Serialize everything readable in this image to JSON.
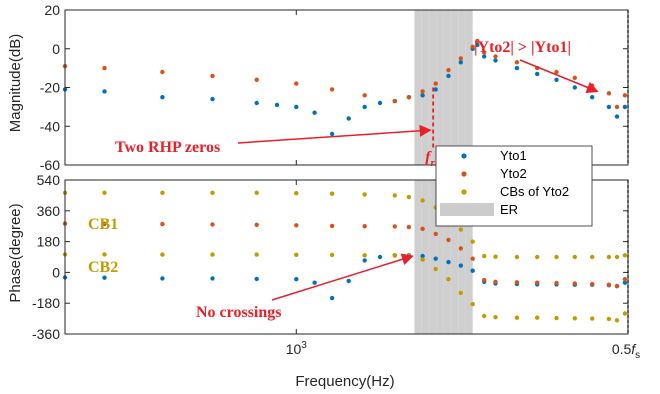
{
  "chart_data": [
    {
      "type": "scatter",
      "panel": "magnitude",
      "ylabel": "Magnitude(dB)",
      "xlabel": "",
      "xscale": "log",
      "xlim": [
        540,
        2420
      ],
      "ylim": [
        -60,
        20
      ],
      "yticks": [
        "20",
        "0",
        "-20",
        "-40",
        "-60"
      ],
      "xticks": [],
      "grid": false,
      "region": {
        "name": "ER",
        "x": [
          1370,
          1600
        ],
        "color": "#bfbfbf"
      },
      "series": [
        {
          "name": "Yto1",
          "color": "#0072BD",
          "x": [
            540,
            600,
            700,
            800,
            900,
            950,
            1000,
            1050,
            1100,
            1150,
            1200,
            1250,
            1300,
            1350,
            1400,
            1450,
            1500,
            1550,
            1600,
            1620,
            1650,
            1700,
            1800,
            1900,
            2000,
            2100,
            2200,
            2300,
            2350,
            2400
          ],
          "y": [
            -21,
            -22,
            -25,
            -26,
            -28,
            -29,
            -30,
            -33,
            -44,
            -36,
            -30,
            -28,
            -27,
            -25,
            -24,
            -21,
            -14,
            -7,
            0,
            2,
            -4,
            -6,
            -10,
            -13,
            -16,
            -20,
            -25,
            -30,
            -35,
            -30
          ]
        },
        {
          "name": "Yto2",
          "color": "#D95319",
          "x": [
            540,
            600,
            700,
            800,
            900,
            1000,
            1100,
            1200,
            1300,
            1350,
            1400,
            1450,
            1500,
            1550,
            1600,
            1620,
            1650,
            1700,
            1800,
            1900,
            2000,
            2100,
            2200,
            2300,
            2350,
            2400
          ],
          "y": [
            -9,
            -10,
            -12,
            -14,
            -16,
            -18,
            -21,
            -24,
            -27,
            -25,
            -22,
            -18,
            -11,
            -5,
            1,
            4,
            -2,
            -4,
            -7,
            -10,
            -12,
            -15,
            -19,
            -23,
            -30,
            -24
          ]
        }
      ],
      "markers": [
        {
          "label": "f",
          "subscript": "r",
          "x": 1440,
          "color": "#e8202a"
        }
      ],
      "annotations": [
        {
          "text": "Two RHP zeros",
          "color": "#e8202a",
          "arrow_to": [
            1440,
            -42
          ]
        },
        {
          "text": "|Yto2| > |Yto1|",
          "color": "#e8202a",
          "arrow_to": [
            2230,
            -22
          ]
        }
      ]
    },
    {
      "type": "scatter",
      "panel": "phase",
      "ylabel": "Phase(degree)",
      "xlabel": "Frequency(Hz)",
      "xscale": "log",
      "xlim": [
        540,
        2420
      ],
      "ylim": [
        -360,
        540
      ],
      "yticks": [
        "540",
        "360",
        "180",
        "0",
        "-180",
        "-360"
      ],
      "xticks": [
        {
          "value": 1000,
          "base": "10",
          "exp": "3"
        },
        {
          "value": 2420,
          "base": "0.5",
          "italic": "f",
          "subscript": "s"
        }
      ],
      "grid": false,
      "region": {
        "name": "ER",
        "x": [
          1370,
          1600
        ],
        "color": "#bfbfbf"
      },
      "series": [
        {
          "name": "Yto1",
          "color": "#0072BD",
          "x": [
            540,
            600,
            700,
            800,
            900,
            1000,
            1050,
            1100,
            1150,
            1200,
            1250,
            1300,
            1350,
            1400,
            1450,
            1500,
            1550,
            1600,
            1650,
            1700,
            1800,
            1900,
            2000,
            2100,
            2200,
            2300,
            2350,
            2400
          ],
          "y": [
            -30,
            -31,
            -35,
            -35,
            -38,
            -40,
            -60,
            -150,
            -50,
            70,
            90,
            100,
            100,
            95,
            80,
            60,
            40,
            10,
            -55,
            -65,
            -68,
            -70,
            -70,
            -72,
            -72,
            -75,
            -80,
            -60
          ]
        },
        {
          "name": "Yto2",
          "color": "#D95319",
          "x": [
            540,
            600,
            700,
            800,
            900,
            1000,
            1100,
            1200,
            1300,
            1350,
            1400,
            1450,
            1500,
            1550,
            1600,
            1650,
            1700,
            1800,
            1900,
            2000,
            2100,
            2200,
            2300,
            2350,
            2400
          ],
          "y": [
            285,
            284,
            282,
            280,
            278,
            275,
            272,
            270,
            268,
            265,
            255,
            225,
            190,
            140,
            80,
            -45,
            -55,
            -58,
            -60,
            -62,
            -65,
            -68,
            -72,
            -80,
            -40
          ]
        },
        {
          "name": "CBs of Yto2",
          "color": "#C49A00",
          "x": [
            540,
            600,
            700,
            800,
            900,
            1000,
            1100,
            1200,
            1300,
            1350,
            1400,
            1450,
            1500,
            1550,
            1600,
            1650,
            1700,
            1800,
            1900,
            2000,
            2100,
            2200,
            2300,
            2350,
            2400
          ],
          "y": [
            465,
            465,
            465,
            465,
            465,
            463,
            460,
            456,
            450,
            440,
            420,
            380,
            320,
            250,
            180,
            95,
            92,
            90,
            90,
            90,
            90,
            90,
            90,
            90,
            100
          ]
        },
        {
          "name": "CBs of Yto2",
          "color": "#C49A00",
          "x": [
            540,
            600,
            700,
            800,
            900,
            1000,
            1100,
            1200,
            1300,
            1350,
            1400,
            1450,
            1500,
            1550,
            1600,
            1650,
            1700,
            1800,
            1900,
            2000,
            2100,
            2200,
            2300,
            2350,
            2400
          ],
          "y": [
            105,
            105,
            104,
            104,
            104,
            103,
            102,
            100,
            98,
            95,
            75,
            20,
            -40,
            -120,
            -185,
            -255,
            -262,
            -265,
            -265,
            -267,
            -268,
            -270,
            -272,
            -280,
            -240
          ]
        }
      ],
      "annotations": [
        {
          "text": "CB1",
          "color": "#C49A00"
        },
        {
          "text": "CB2",
          "color": "#C49A00"
        },
        {
          "text": "No crossings",
          "color": "#e8202a",
          "arrow_to": [
            1370,
            95
          ]
        }
      ]
    }
  ]
}
